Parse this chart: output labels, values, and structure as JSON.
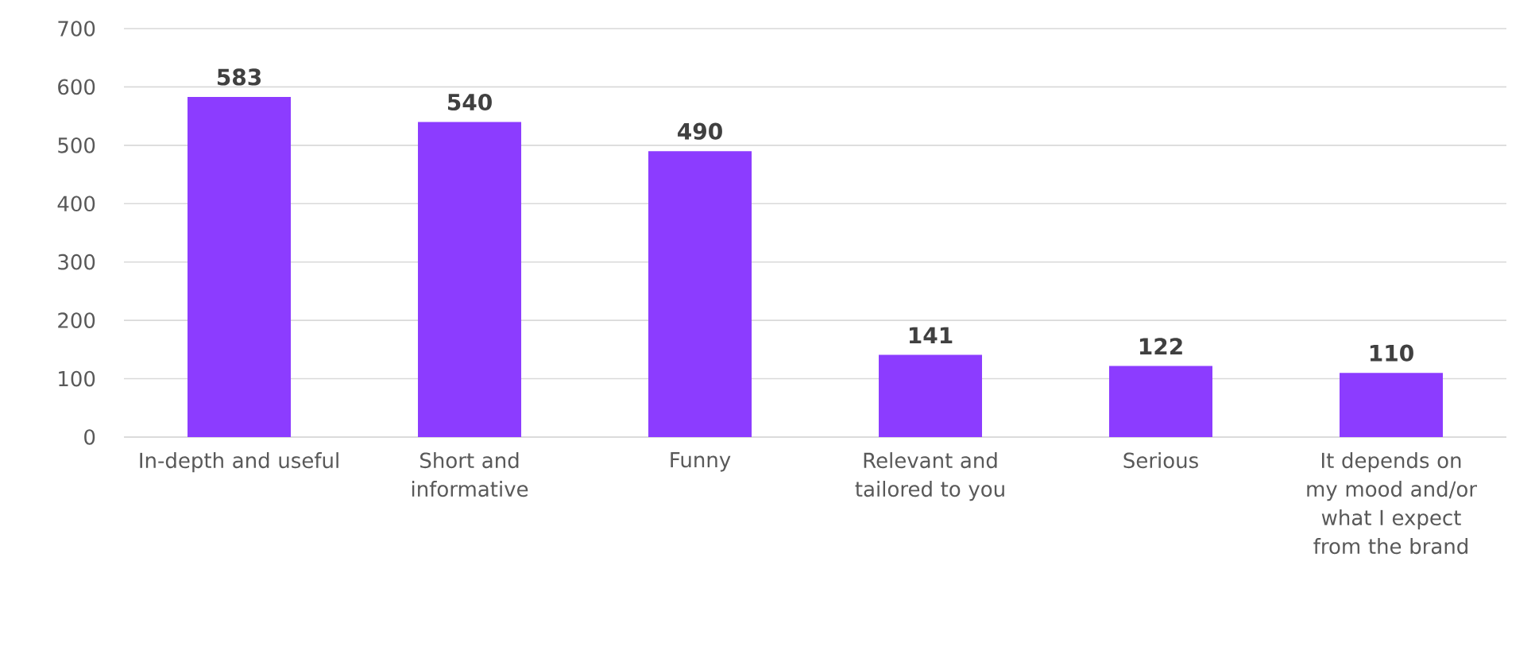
{
  "chart_data": {
    "type": "bar",
    "categories": [
      "In-depth and useful",
      "Short and informative",
      "Funny",
      "Relevant and tailored to you",
      "Serious",
      "It depends on my mood and/or what I expect from the brand"
    ],
    "values": [
      583,
      540,
      490,
      141,
      122,
      110
    ],
    "color": "#8c3cff",
    "ylim": [
      0,
      700
    ],
    "yticks": [
      0,
      100,
      200,
      300,
      400,
      500,
      600,
      700
    ],
    "grid": "y",
    "data_labels": true
  }
}
